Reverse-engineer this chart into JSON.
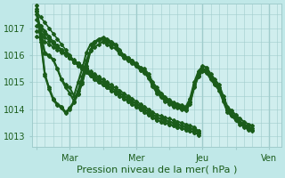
{
  "background_color": "#c0e8e8",
  "plot_bg_color": "#d0eeee",
  "grid_color": "#a0cccc",
  "line_color": "#1a5c1a",
  "title": "Pression niveau de la mer( hPa )",
  "xtick_labels": [
    "",
    "Mar",
    "",
    "Mer",
    "",
    "Jeu",
    "",
    "Ven"
  ],
  "xtick_positions": [
    0,
    8,
    16,
    24,
    32,
    40,
    48,
    56
  ],
  "ytick_labels": [
    "1013",
    "1014",
    "1015",
    "1016",
    "1017"
  ],
  "ytick_positions": [
    1013,
    1014,
    1015,
    1016,
    1017
  ],
  "ylim": [
    1012.6,
    1017.9
  ],
  "xlim": [
    -1,
    59
  ],
  "series": [
    [
      1017.6,
      1017.4,
      1017.2,
      1017.0,
      1016.8,
      1016.6,
      1016.4,
      1016.2,
      1016.0,
      1015.8,
      1015.7,
      1015.55,
      1015.4,
      1015.3,
      1015.2,
      1015.1,
      1015.0,
      1014.9,
      1014.8,
      1014.7,
      1014.6,
      1014.5,
      1014.4,
      1014.3,
      1014.2,
      1014.1,
      1014.0,
      1013.9,
      1013.8,
      1013.7,
      1013.65,
      1013.6,
      1013.55,
      1013.5,
      1013.45,
      1013.4,
      1013.35,
      1013.3,
      1013.25,
      1013.2
    ],
    [
      1017.3,
      1017.1,
      1016.9,
      1016.7,
      1016.5,
      1016.35,
      1016.2,
      1016.05,
      1015.9,
      1015.75,
      1015.62,
      1015.49,
      1015.36,
      1015.23,
      1015.1,
      1015.0,
      1014.9,
      1014.8,
      1014.7,
      1014.6,
      1014.5,
      1014.4,
      1014.3,
      1014.2,
      1014.1,
      1014.0,
      1013.9,
      1013.8,
      1013.7,
      1013.6,
      1013.55,
      1013.5,
      1013.45,
      1013.4,
      1013.35,
      1013.3,
      1013.25,
      1013.2,
      1013.15,
      1013.1
    ],
    [
      1017.1,
      1016.95,
      1016.8,
      1016.65,
      1016.5,
      1016.35,
      1016.2,
      1016.05,
      1015.9,
      1015.75,
      1015.62,
      1015.49,
      1015.36,
      1015.23,
      1015.1,
      1015.0,
      1014.9,
      1014.8,
      1014.7,
      1014.6,
      1014.5,
      1014.4,
      1014.3,
      1014.2,
      1014.1,
      1014.0,
      1013.9,
      1013.8,
      1013.7,
      1013.6,
      1013.55,
      1013.5,
      1013.45,
      1013.4,
      1013.35,
      1013.3,
      1013.25,
      1013.2,
      1013.15,
      1013.05
    ],
    [
      1016.9,
      1016.78,
      1016.66,
      1016.54,
      1016.42,
      1016.3,
      1016.18,
      1016.06,
      1015.94,
      1015.82,
      1015.7,
      1015.58,
      1015.46,
      1015.34,
      1015.22,
      1015.1,
      1015.0,
      1014.9,
      1014.8,
      1014.7,
      1014.6,
      1014.5,
      1014.4,
      1014.3,
      1014.2,
      1014.1,
      1014.0,
      1013.9,
      1013.8,
      1013.7,
      1013.65,
      1013.6,
      1013.55,
      1013.5,
      1013.45,
      1013.4,
      1013.35,
      1013.3,
      1013.25,
      1013.15
    ],
    [
      1016.7,
      1016.6,
      1016.5,
      1016.4,
      1016.3,
      1016.2,
      1016.1,
      1016.0,
      1015.9,
      1015.8,
      1015.7,
      1015.6,
      1015.5,
      1015.4,
      1015.3,
      1015.2,
      1015.1,
      1015.0,
      1014.9,
      1014.8,
      1014.7,
      1014.6,
      1014.5,
      1014.4,
      1014.3,
      1014.2,
      1014.1,
      1014.0,
      1013.9,
      1013.8,
      1013.75,
      1013.7,
      1013.65,
      1013.6,
      1013.55,
      1013.5,
      1013.45,
      1013.4,
      1013.35,
      1013.2
    ],
    [
      1017.7,
      1016.8,
      1016.1,
      1016.0,
      1015.85,
      1015.5,
      1015.1,
      1014.9,
      1014.8,
      1014.5,
      1015.0,
      1015.5,
      1016.1,
      1016.4,
      1016.5,
      1016.55,
      1016.6,
      1016.5,
      1016.4,
      1016.35,
      1016.15,
      1016.0,
      1015.9,
      1015.8,
      1015.7,
      1015.55,
      1015.5,
      1015.3,
      1015.0,
      1014.8,
      1014.6,
      1014.45,
      1014.35,
      1014.25,
      1014.2,
      1014.15,
      1014.1,
      1014.4,
      1015.0,
      1015.4,
      1015.6,
      1015.55,
      1015.3,
      1015.1,
      1014.9,
      1014.5,
      1014.1,
      1013.95,
      1013.8,
      1013.65,
      1013.55,
      1013.45,
      1013.4
    ],
    [
      1017.5,
      1016.7,
      1016.05,
      1015.95,
      1015.82,
      1015.5,
      1015.1,
      1014.8,
      1014.6,
      1014.3,
      1014.7,
      1015.2,
      1015.8,
      1016.2,
      1016.3,
      1016.4,
      1016.5,
      1016.4,
      1016.3,
      1016.25,
      1016.05,
      1015.9,
      1015.8,
      1015.7,
      1015.6,
      1015.45,
      1015.4,
      1015.2,
      1014.9,
      1014.7,
      1014.55,
      1014.4,
      1014.3,
      1014.2,
      1014.15,
      1014.1,
      1014.05,
      1014.3,
      1014.9,
      1015.3,
      1015.5,
      1015.45,
      1015.2,
      1015.0,
      1014.8,
      1014.4,
      1014.0,
      1013.85,
      1013.7,
      1013.55,
      1013.45,
      1013.35,
      1013.3
    ],
    [
      1017.85,
      1016.6,
      1015.3,
      1014.8,
      1014.4,
      1014.2,
      1014.1,
      1013.9,
      1014.05,
      1014.3,
      1014.6,
      1015.0,
      1015.6,
      1016.2,
      1016.5,
      1016.6,
      1016.65,
      1016.6,
      1016.5,
      1016.4,
      1016.2,
      1016.0,
      1015.9,
      1015.8,
      1015.65,
      1015.5,
      1015.4,
      1015.2,
      1014.9,
      1014.65,
      1014.5,
      1014.35,
      1014.25,
      1014.15,
      1014.1,
      1014.05,
      1014.0,
      1014.25,
      1014.85,
      1015.25,
      1015.45,
      1015.4,
      1015.15,
      1014.95,
      1014.75,
      1014.35,
      1013.95,
      1013.8,
      1013.65,
      1013.5,
      1013.4,
      1013.3,
      1013.25
    ],
    [
      1017.65,
      1016.5,
      1015.25,
      1014.75,
      1014.35,
      1014.15,
      1014.05,
      1013.85,
      1014.0,
      1014.25,
      1014.55,
      1014.95,
      1015.55,
      1016.15,
      1016.45,
      1016.55,
      1016.6,
      1016.55,
      1016.45,
      1016.35,
      1016.15,
      1015.95,
      1015.85,
      1015.75,
      1015.6,
      1015.45,
      1015.35,
      1015.15,
      1014.85,
      1014.6,
      1014.45,
      1014.3,
      1014.2,
      1014.1,
      1014.05,
      1014.0,
      1013.95,
      1014.2,
      1014.8,
      1015.2,
      1015.4,
      1015.35,
      1015.1,
      1014.9,
      1014.7,
      1014.3,
      1013.9,
      1013.75,
      1013.6,
      1013.45,
      1013.35,
      1013.25,
      1013.2
    ]
  ],
  "series_linewidths": [
    1.2,
    1.2,
    1.2,
    1.2,
    1.2,
    1.5,
    1.5,
    1.5,
    1.5
  ],
  "marker": "D",
  "markersize": 2.0,
  "xlabel_fontsize": 8,
  "ytick_fontsize": 7,
  "xtick_fontsize": 7
}
